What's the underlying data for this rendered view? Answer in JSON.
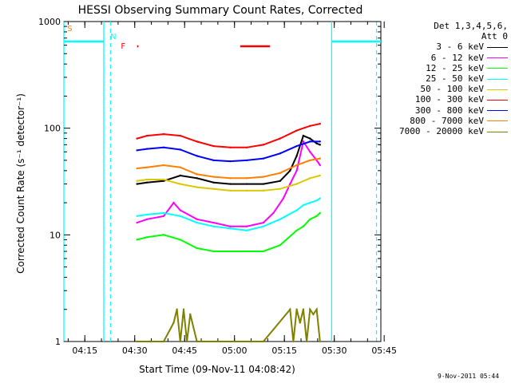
{
  "chart_data": {
    "type": "line",
    "title": "HESSI Observing Summary Count Rates, Corrected",
    "xlabel": "Start Time (09-Nov-11 04:08:42)",
    "ylabel": "Corrected Count Rate (s⁻¹ detector⁻¹)",
    "yscale": "log",
    "ylim": [
      1,
      1000
    ],
    "xlim_minutes_from_start": [
      0,
      95.3
    ],
    "y_tick_labels": [
      "1",
      "10",
      "100",
      "1000"
    ],
    "x_tick_labels": [
      "04:15",
      "04:30",
      "04:45",
      "05:00",
      "05:15",
      "05:30",
      "05:45"
    ],
    "x_ticks_minutes_after_0400": [
      15,
      30,
      45,
      60,
      75,
      90,
      105
    ],
    "legend": {
      "header_lines": [
        "Det 1,3,4,5,6,",
        "Att 0"
      ],
      "placement": "right-outside"
    },
    "series": [
      {
        "name": "3 - 6 keV",
        "color": "#000000",
        "x": [
          22,
          25,
          30,
          35,
          40,
          45,
          50,
          55,
          60,
          65,
          68,
          70,
          72,
          74,
          76,
          77
        ],
        "values": [
          30,
          31,
          32,
          36,
          34,
          31,
          30,
          30,
          30,
          32,
          40,
          55,
          85,
          80,
          72,
          70
        ]
      },
      {
        "name": "6 - 12 keV",
        "color": "#ff00ff",
        "x": [
          22,
          25,
          30,
          33,
          35,
          40,
          45,
          50,
          55,
          60,
          63,
          66,
          68,
          70,
          72,
          74,
          76,
          77
        ],
        "values": [
          13,
          14,
          15,
          20,
          17,
          14,
          13,
          12,
          12,
          13,
          16,
          22,
          30,
          40,
          75,
          60,
          50,
          45
        ]
      },
      {
        "name": "12 - 25 keV",
        "color": "#00ff00",
        "x": [
          22,
          25,
          30,
          35,
          40,
          45,
          50,
          55,
          60,
          65,
          70,
          72,
          74,
          76,
          77
        ],
        "values": [
          9,
          9.5,
          10,
          9,
          7.5,
          7,
          7,
          7,
          7,
          8,
          11,
          12,
          14,
          15,
          16
        ]
      },
      {
        "name": "25 - 50 keV",
        "color": "#00ffff",
        "x": [
          22,
          25,
          30,
          35,
          40,
          45,
          50,
          55,
          60,
          65,
          70,
          72,
          74,
          76,
          77
        ],
        "values": [
          15,
          15.5,
          16,
          15,
          13,
          12,
          11.5,
          11,
          12,
          14,
          17,
          19,
          20,
          21,
          22
        ]
      },
      {
        "name": "50 - 100 keV",
        "color": "#dcc800",
        "x": [
          22,
          25,
          30,
          35,
          40,
          45,
          50,
          55,
          60,
          65,
          70,
          74,
          77
        ],
        "values": [
          32,
          33,
          33,
          30,
          28,
          27,
          26,
          26,
          26,
          27,
          30,
          34,
          36
        ]
      },
      {
        "name": "100 - 300 keV",
        "color": "#ff0000",
        "x": [
          22,
          25,
          30,
          35,
          40,
          45,
          50,
          55,
          60,
          65,
          70,
          74,
          77
        ],
        "values": [
          80,
          85,
          88,
          85,
          75,
          68,
          66,
          66,
          70,
          80,
          95,
          105,
          110
        ]
      },
      {
        "name": "300 - 800 keV",
        "color": "#0000ff",
        "x": [
          22,
          25,
          30,
          35,
          40,
          45,
          50,
          55,
          60,
          65,
          70,
          74,
          77
        ],
        "values": [
          62,
          64,
          66,
          63,
          55,
          50,
          49,
          50,
          52,
          58,
          68,
          75,
          75
        ]
      },
      {
        "name": "800 - 7000 keV",
        "color": "#ff8000",
        "x": [
          22,
          25,
          30,
          35,
          40,
          45,
          50,
          55,
          60,
          65,
          70,
          74,
          77
        ],
        "values": [
          42,
          43,
          45,
          43,
          37,
          35,
          34,
          34,
          35,
          38,
          45,
          50,
          52
        ]
      },
      {
        "name": "7000 - 20000 keV",
        "color": "#808000",
        "x": [
          22,
          26,
          30,
          33,
          34,
          35,
          36,
          37,
          38,
          40,
          60,
          68,
          69,
          70,
          71,
          72,
          73,
          74,
          75,
          76,
          77
        ],
        "values": [
          1,
          1,
          1,
          1.5,
          2,
          1,
          2,
          1,
          1.8,
          1,
          1,
          2,
          1,
          2,
          1.5,
          2,
          1,
          2,
          1.8,
          2,
          1
        ]
      }
    ],
    "attenuator_levels": [
      {
        "x": [
          0,
          12
        ],
        "value": 650
      },
      {
        "x": [
          80.5,
          95.3
        ],
        "value": 650
      }
    ],
    "flags": [
      {
        "label": "S",
        "x": [
          1,
          1.5
        ],
        "color": "#ff8000"
      },
      {
        "label": "N",
        "x": [
          12.5,
          13
        ],
        "color": "#00ffff"
      },
      {
        "label": "F",
        "x": [
          20,
          22
        ],
        "color": "#ff0000"
      },
      {
        "label": "",
        "x": [
          53,
          62
        ],
        "color": "#ff0000"
      }
    ],
    "night_boundaries_dashed": [
      14,
      94
    ],
    "night_boundaries_solid": [
      0,
      12,
      80.5
    ]
  },
  "footer_date": "9-Nov-2011 05:44"
}
